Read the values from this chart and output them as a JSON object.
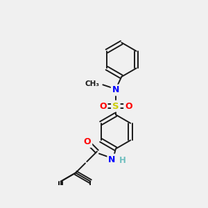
{
  "bg_color": "#f0f0f0",
  "bond_color": "#1a1a1a",
  "atom_colors": {
    "N": "#0000ff",
    "O": "#ff0000",
    "S": "#cccc00",
    "F": "#cc00cc",
    "H": "#6fbfbf",
    "C": "#1a1a1a"
  },
  "figsize": [
    3.0,
    3.0
  ],
  "dpi": 100
}
